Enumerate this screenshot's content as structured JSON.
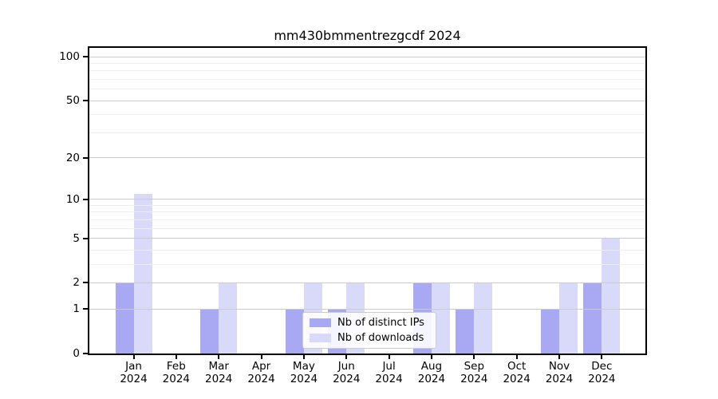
{
  "title": "mm430bmmentrezgcdf 2024",
  "chart_data": {
    "type": "bar",
    "title": "mm430bmmentrezgcdf 2024",
    "categories": [
      "Jan",
      "Feb",
      "Mar",
      "Apr",
      "May",
      "Jun",
      "Jul",
      "Aug",
      "Sep",
      "Oct",
      "Nov",
      "Dec"
    ],
    "year_label": "2024",
    "series": [
      {
        "name": "Nb of distinct IPs",
        "color": "#a9a9f3",
        "values": [
          2,
          0,
          1,
          0,
          1,
          1,
          0,
          2,
          1,
          0,
          1,
          2
        ]
      },
      {
        "name": "Nb of downloads",
        "color": "#d9d9f9",
        "values": [
          11,
          0,
          2,
          0,
          2,
          2,
          0,
          2,
          2,
          0,
          2,
          5
        ]
      }
    ],
    "yscale": "log1p",
    "y_ticks": [
      0,
      1,
      2,
      5,
      10,
      20,
      50,
      100
    ],
    "y_minor_gridlines": [
      3,
      4,
      6,
      7,
      8,
      9,
      30,
      40,
      60,
      70,
      80,
      90
    ],
    "ylim": [
      0,
      115
    ],
    "grid": true,
    "legend_position": "lower center",
    "colors": {
      "major_grid": "#cbcbcb",
      "minor_grid": "#efefef",
      "axis": "#000000",
      "background": "#ffffff"
    }
  }
}
